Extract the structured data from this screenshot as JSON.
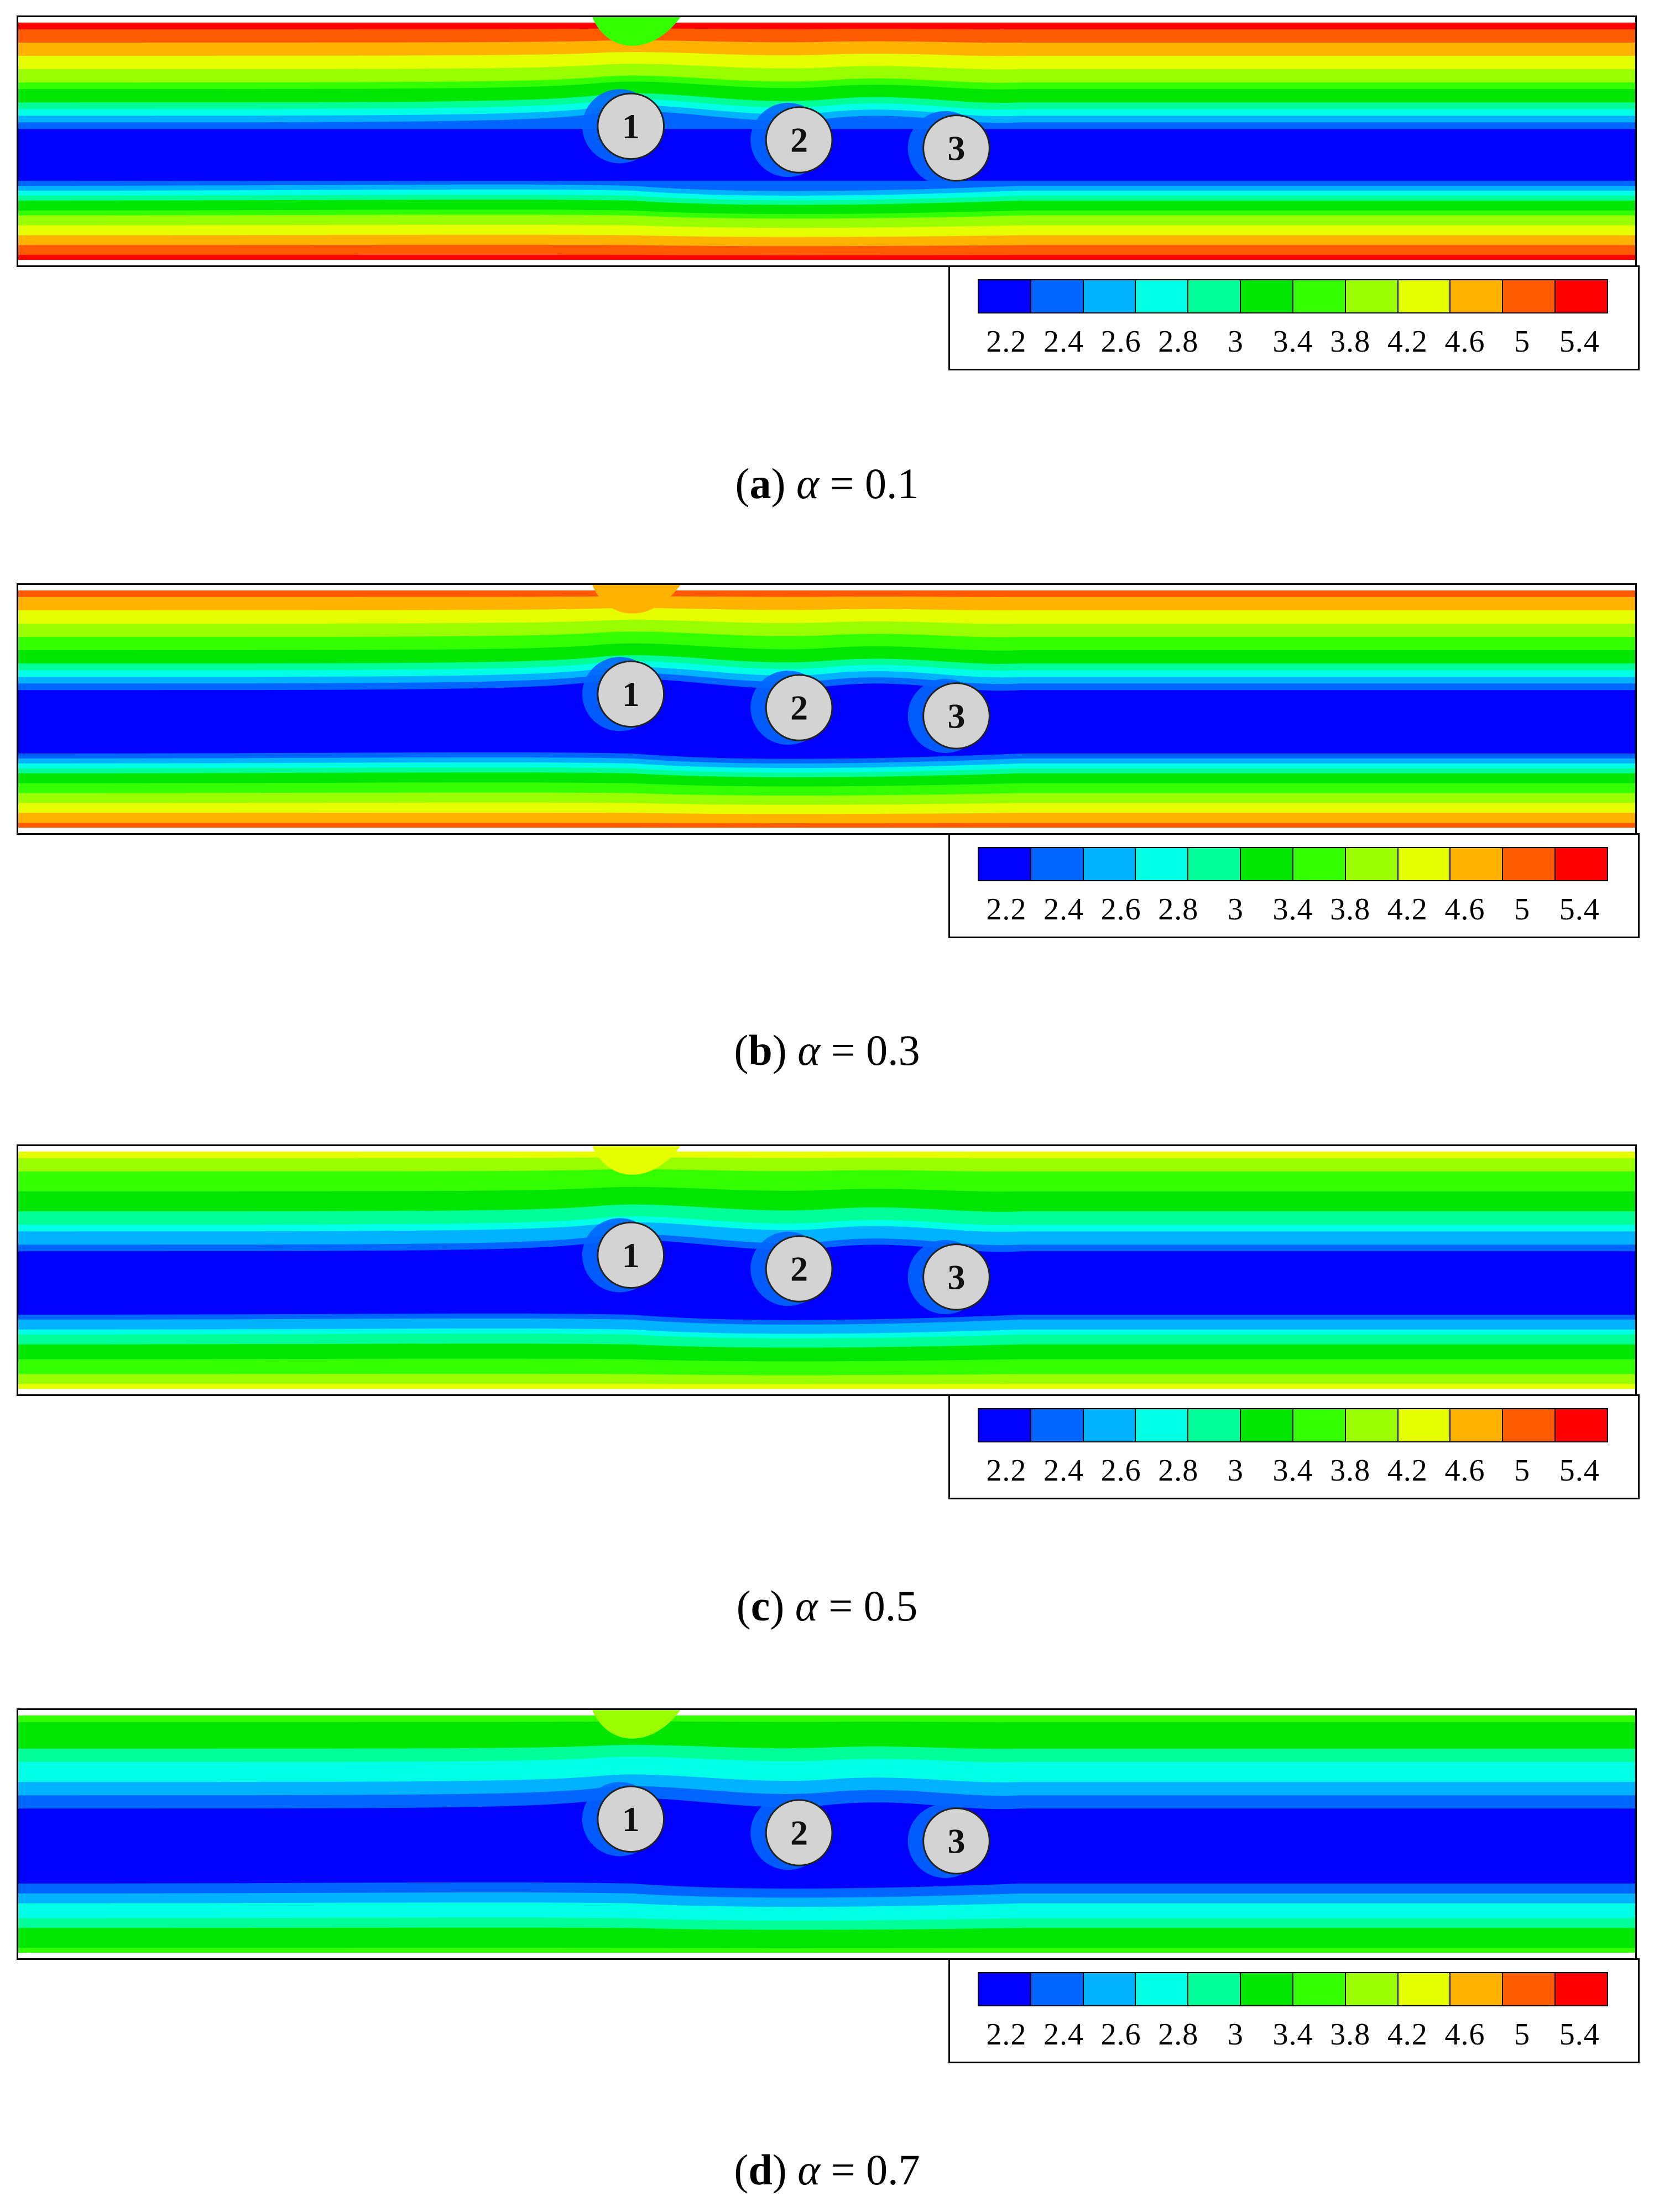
{
  "chart_data": [
    {
      "type": "heatmap",
      "panel": "a",
      "param_symbol": "α",
      "param_value": "0.1",
      "title": "(a) α = 0.1",
      "outer_level": 5.6,
      "wake_level": 3.6,
      "cylinders": [
        "1",
        "2",
        "3"
      ],
      "legend": {
        "levels": [
          "2.2",
          "2.4",
          "2.6",
          "2.8",
          "3",
          "3.4",
          "3.8",
          "4.2",
          "4.6",
          "5",
          "5.4"
        ],
        "colors": [
          "#0000ff",
          "#0066ff",
          "#00b2ff",
          "#00ffe5",
          "#00ff99",
          "#00e600",
          "#33ff00",
          "#99ff00",
          "#e5ff00",
          "#ffb200",
          "#ff5a00",
          "#ff0000"
        ]
      }
    },
    {
      "type": "heatmap",
      "panel": "b",
      "param_symbol": "α",
      "param_value": "0.3",
      "title": "(b) α = 0.3",
      "outer_level": 5.0,
      "wake_level": 4.6,
      "cylinders": [
        "1",
        "2",
        "3"
      ],
      "legend": {
        "levels": [
          "2.2",
          "2.4",
          "2.6",
          "2.8",
          "3",
          "3.4",
          "3.8",
          "4.2",
          "4.6",
          "5",
          "5.4"
        ],
        "colors": [
          "#0000ff",
          "#0066ff",
          "#00b2ff",
          "#00ffe5",
          "#00ff99",
          "#00e600",
          "#33ff00",
          "#99ff00",
          "#e5ff00",
          "#ffb200",
          "#ff5a00",
          "#ff0000"
        ]
      }
    },
    {
      "type": "heatmap",
      "panel": "c",
      "param_symbol": "α",
      "param_value": "0.5",
      "title": "(c) α = 0.5",
      "outer_level": 4.2,
      "wake_level": 4.2,
      "cylinders": [
        "1",
        "2",
        "3"
      ],
      "legend": {
        "levels": [
          "2.2",
          "2.4",
          "2.6",
          "2.8",
          "3",
          "3.4",
          "3.8",
          "4.2",
          "4.6",
          "5",
          "5.4"
        ],
        "colors": [
          "#0000ff",
          "#0066ff",
          "#00b2ff",
          "#00ffe5",
          "#00ff99",
          "#00e600",
          "#33ff00",
          "#99ff00",
          "#e5ff00",
          "#ffb200",
          "#ff5a00",
          "#ff0000"
        ]
      }
    },
    {
      "type": "heatmap",
      "panel": "d",
      "param_symbol": "α",
      "param_value": "0.7",
      "title": "(d) α = 0.7",
      "outer_level": 3.4,
      "wake_level": 3.8,
      "cylinders": [
        "1",
        "2",
        "3"
      ],
      "legend": {
        "levels": [
          "2.2",
          "2.4",
          "2.6",
          "2.8",
          "3",
          "3.4",
          "3.8",
          "4.2",
          "4.6",
          "5",
          "5.4"
        ],
        "colors": [
          "#0000ff",
          "#0066ff",
          "#00b2ff",
          "#00ffe5",
          "#00ff99",
          "#00e600",
          "#33ff00",
          "#99ff00",
          "#e5ff00",
          "#ffb200",
          "#ff5a00",
          "#ff0000"
        ]
      }
    }
  ]
}
